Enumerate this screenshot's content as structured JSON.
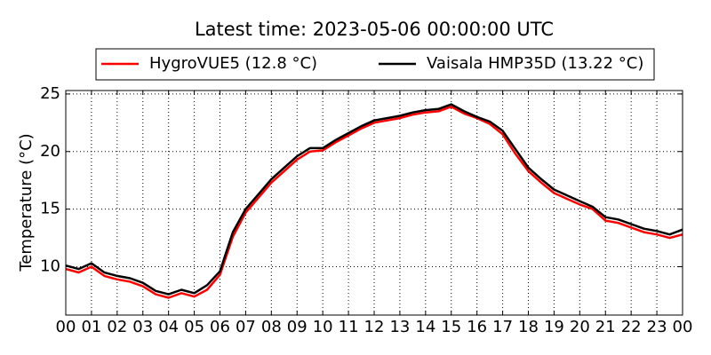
{
  "chart_data": {
    "type": "line",
    "title": "Latest time: 2023-05-06 00:00:00 UTC",
    "y_label": "Temperature (°C)",
    "x": [
      0,
      0.5,
      1,
      1.5,
      2,
      2.5,
      3,
      3.5,
      4,
      4.5,
      5,
      5.5,
      6,
      6.5,
      7,
      7.5,
      8,
      8.5,
      9,
      9.5,
      10,
      10.5,
      11,
      11.5,
      12,
      12.5,
      13,
      13.5,
      14,
      14.5,
      15,
      15.5,
      16,
      16.5,
      17,
      17.5,
      18,
      18.5,
      19,
      19.5,
      20,
      20.5,
      21,
      21.5,
      22,
      22.5,
      23,
      23.5,
      24
    ],
    "series": [
      {
        "name": "HygroVUE5 (12.8 °C)",
        "color": "#ff0000",
        "values": [
          9.8,
          9.5,
          10.0,
          9.2,
          8.9,
          8.7,
          8.3,
          7.6,
          7.3,
          7.7,
          7.4,
          8.0,
          9.3,
          12.6,
          14.7,
          16.0,
          17.3,
          18.3,
          19.3,
          20.0,
          20.1,
          20.8,
          21.4,
          22.0,
          22.5,
          22.7,
          22.9,
          23.2,
          23.4,
          23.5,
          23.9,
          23.3,
          22.9,
          22.4,
          21.5,
          19.8,
          18.3,
          17.3,
          16.4,
          15.9,
          15.4,
          15.0,
          14.0,
          13.8,
          13.4,
          13.0,
          12.8,
          12.5,
          12.8
        ]
      },
      {
        "name": "Vaisala HMP35D (13.22 °C)",
        "color": "#000000",
        "values": [
          10.1,
          9.8,
          10.3,
          9.5,
          9.2,
          9.0,
          8.6,
          7.9,
          7.6,
          8.0,
          7.7,
          8.4,
          9.6,
          13.0,
          15.0,
          16.3,
          17.6,
          18.6,
          19.6,
          20.3,
          20.3,
          21.0,
          21.6,
          22.2,
          22.7,
          22.9,
          23.1,
          23.4,
          23.6,
          23.7,
          24.1,
          23.5,
          23.0,
          22.6,
          21.8,
          20.2,
          18.6,
          17.6,
          16.7,
          16.2,
          15.7,
          15.2,
          14.3,
          14.1,
          13.7,
          13.3,
          13.1,
          12.8,
          13.22
        ]
      }
    ],
    "xlim": [
      0,
      24
    ],
    "xticks": [
      {
        "value": 0,
        "label": "00"
      },
      {
        "value": 1,
        "label": "01"
      },
      {
        "value": 2,
        "label": "02"
      },
      {
        "value": 3,
        "label": "03"
      },
      {
        "value": 4,
        "label": "04"
      },
      {
        "value": 5,
        "label": "05"
      },
      {
        "value": 6,
        "label": "06"
      },
      {
        "value": 7,
        "label": "07"
      },
      {
        "value": 8,
        "label": "08"
      },
      {
        "value": 9,
        "label": "09"
      },
      {
        "value": 10,
        "label": "10"
      },
      {
        "value": 11,
        "label": "11"
      },
      {
        "value": 12,
        "label": "12"
      },
      {
        "value": 13,
        "label": "13"
      },
      {
        "value": 14,
        "label": "14"
      },
      {
        "value": 15,
        "label": "15"
      },
      {
        "value": 16,
        "label": "16"
      },
      {
        "value": 17,
        "label": "17"
      },
      {
        "value": 18,
        "label": "18"
      },
      {
        "value": 19,
        "label": "19"
      },
      {
        "value": 20,
        "label": "20"
      },
      {
        "value": 21,
        "label": "21"
      },
      {
        "value": 22,
        "label": "22"
      },
      {
        "value": 23,
        "label": "23"
      },
      {
        "value": 24,
        "label": "00"
      }
    ],
    "ylim": [
      5.8,
      25.3
    ],
    "yticks": [
      10,
      15,
      20,
      25
    ],
    "grid": true,
    "legend": "top"
  }
}
